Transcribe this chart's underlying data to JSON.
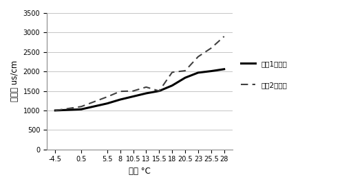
{
  "x_labels": [
    "-4.5",
    "0.5",
    "5.5",
    "8",
    "10.5",
    "13",
    "15.5",
    "18",
    "20.5",
    "23",
    "25.5",
    "28"
  ],
  "x_values": [
    -4.5,
    0.5,
    5.5,
    8,
    10.5,
    13,
    15.5,
    18,
    20.5,
    23,
    25.5,
    28
  ],
  "series1_y": [
    1000,
    1030,
    1180,
    1280,
    1360,
    1440,
    1500,
    1640,
    1840,
    1970,
    2010,
    2060
  ],
  "series2_y": [
    1000,
    1100,
    1350,
    1490,
    1500,
    1600,
    1500,
    1980,
    2020,
    2380,
    2600,
    2900
  ],
  "series1_label": "序列1加温前",
  "series2_label": "序列2加温后",
  "xlabel": "温度 °C",
  "ylabel": "电导率 us/cm",
  "ylim": [
    0,
    3500
  ],
  "yticks": [
    0,
    500,
    1000,
    1500,
    2000,
    2500,
    3000,
    3500
  ],
  "background_color": "#ffffff",
  "series1_color": "#000000",
  "series2_color": "#404040",
  "series1_linewidth": 2.2,
  "series2_linewidth": 1.5,
  "legend_fontsize": 7.5,
  "axis_label_fontsize": 8.5,
  "tick_fontsize": 7
}
